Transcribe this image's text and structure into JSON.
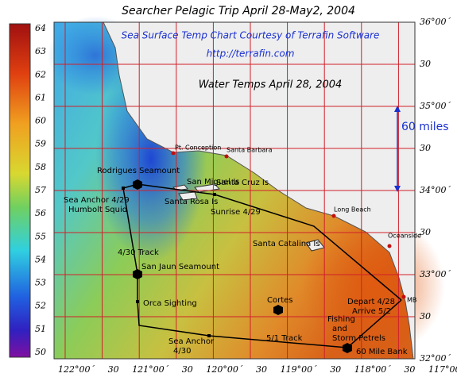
{
  "title": "Searcher Pelagic Trip April 28-May2, 2004",
  "credit": {
    "line1": "Sea Surface Temp Chart Courtesy of Terrafin Software",
    "url": "http://terrafin.com",
    "date": "Water Temps April 28, 2004"
  },
  "scale": "60 miles",
  "colorbar": [
    64,
    63,
    62,
    61,
    60,
    59,
    58,
    57,
    56,
    55,
    54,
    53,
    52,
    51,
    50
  ],
  "latitude_labels": [
    "36°00´",
    "30",
    "35°00´",
    "30",
    "34°00´",
    "30",
    "33°00´",
    "30",
    "32°00´"
  ],
  "longitude_labels": [
    "122°00´",
    "30",
    "121°00´",
    "30",
    "120°00´",
    "30",
    "119°00´",
    "30",
    "118°00´",
    "30",
    "117°00´"
  ],
  "places": [
    "Pt. Conception",
    "Santa Barbara",
    "Long Beach",
    "Oceanside",
    "MB",
    "San Miguel Is",
    "Santa Cruz Is",
    "Santa Rosa Is",
    "Santa Catalina Is"
  ],
  "route": [
    {
      "lines": [
        "Rodrigues Seamount"
      ]
    },
    {
      "lines": [
        "Sea Anchor 4/29",
        "Humbolt Squid"
      ]
    },
    {
      "lines": [
        "Sunrise 4/29"
      ]
    },
    {
      "lines": [
        "4/30 Track"
      ]
    },
    {
      "lines": [
        "San Jaun Seamount"
      ]
    },
    {
      "lines": [
        "Orca Sighting"
      ]
    },
    {
      "lines": [
        "Cortes"
      ]
    },
    {
      "lines": [
        "Sea Anchor",
        "4/30"
      ]
    },
    {
      "lines": [
        "5/1 Track"
      ]
    },
    {
      "lines": [
        "Fishing",
        "and",
        "Storm Petrels"
      ]
    },
    {
      "lines": [
        "60 Mile Bank"
      ]
    },
    {
      "lines": [
        "Depart 4/28",
        "Arrive 5/2"
      ]
    }
  ]
}
